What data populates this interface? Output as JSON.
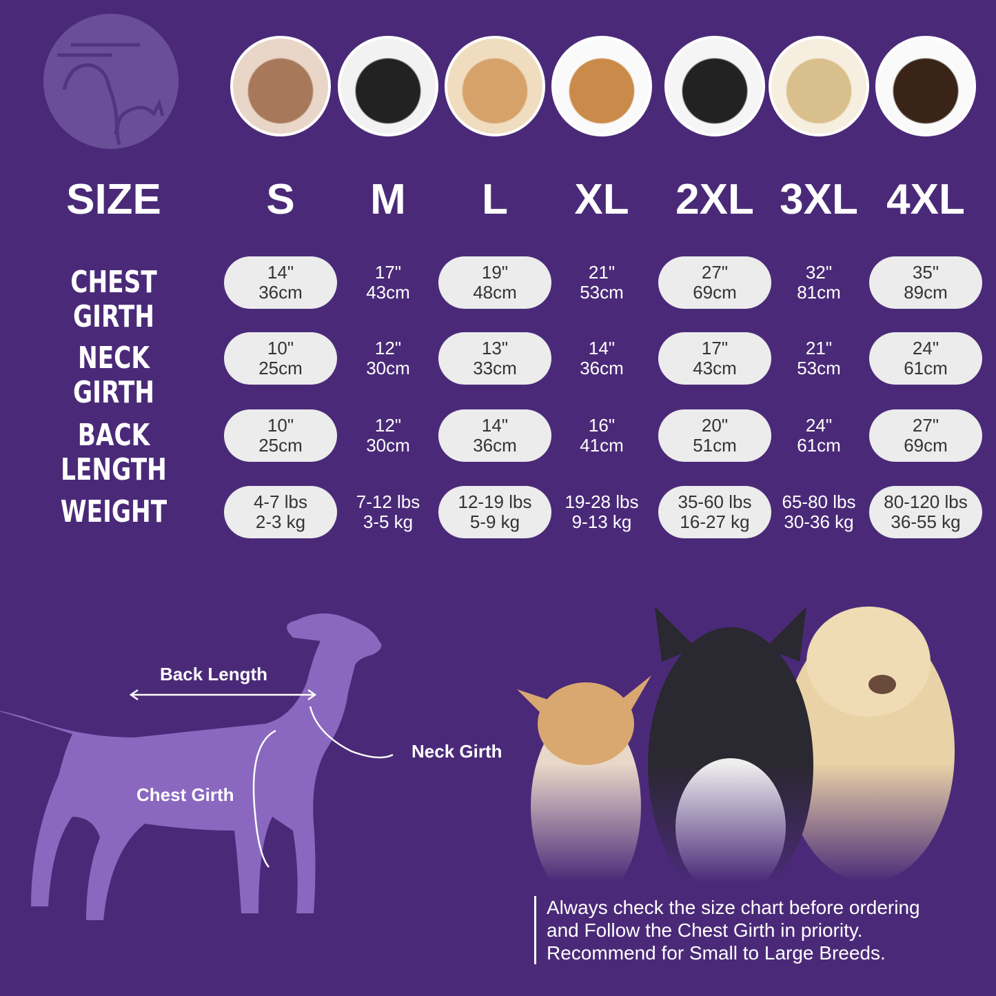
{
  "header_label": "SIZE",
  "sizes": [
    "S",
    "M",
    "L",
    "XL",
    "2XL",
    "3XL",
    "4XL"
  ],
  "rows": [
    {
      "label": "CHEST GIRTH",
      "values": [
        [
          "14\"",
          "36cm"
        ],
        [
          "17\"",
          "43cm"
        ],
        [
          "19\"",
          "48cm"
        ],
        [
          "21\"",
          "53cm"
        ],
        [
          "27\"",
          "69cm"
        ],
        [
          "32\"",
          "81cm"
        ],
        [
          "35\"",
          "89cm"
        ]
      ]
    },
    {
      "label": "NECK GIRTH",
      "values": [
        [
          "10\"",
          "25cm"
        ],
        [
          "12\"",
          "30cm"
        ],
        [
          "13\"",
          "33cm"
        ],
        [
          "14\"",
          "36cm"
        ],
        [
          "17\"",
          "43cm"
        ],
        [
          "21\"",
          "53cm"
        ],
        [
          "24\"",
          "61cm"
        ]
      ]
    },
    {
      "label": "BACK LENGTH",
      "values": [
        [
          "10\"",
          "25cm"
        ],
        [
          "12\"",
          "30cm"
        ],
        [
          "14\"",
          "36cm"
        ],
        [
          "16\"",
          "41cm"
        ],
        [
          "20\"",
          "51cm"
        ],
        [
          "24\"",
          "61cm"
        ],
        [
          "27\"",
          "69cm"
        ]
      ]
    },
    {
      "label": "WEIGHT",
      "values": [
        [
          "4-7 lbs",
          "2-3 kg"
        ],
        [
          "7-12 lbs",
          "3-5 kg"
        ],
        [
          "12-19 lbs",
          "5-9 kg"
        ],
        [
          "19-28 lbs",
          "9-13 kg"
        ],
        [
          "35-60 lbs",
          "16-27 kg"
        ],
        [
          "65-80 lbs",
          "30-36 kg"
        ],
        [
          "80-120 lbs",
          "36-55 kg"
        ]
      ]
    }
  ],
  "breed_photos": [
    "shih-tzu",
    "boston-terrier",
    "cocker-spaniel",
    "beagle",
    "border-collie",
    "labrador",
    "doberman"
  ],
  "diagram": {
    "back_length": "Back Length",
    "neck_girth": "Neck Girth",
    "chest_girth": "Chest Girth"
  },
  "note": [
    "Always check the size chart before ordering",
    "and Follow the Chest Girth in priority.",
    "Recommend for Small to Large Breeds."
  ],
  "colors": {
    "background": "#4a2a78",
    "pill": "#ececec",
    "silhouette": "#8a68c0"
  }
}
